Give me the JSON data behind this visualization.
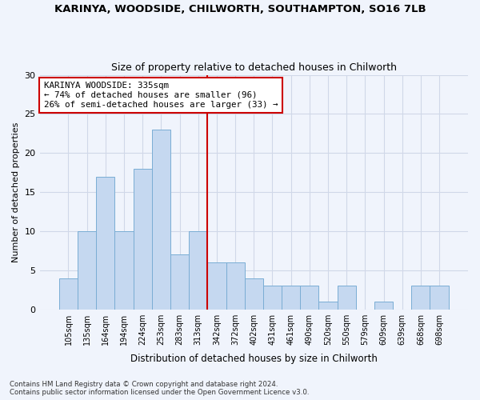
{
  "title": "KARINYA, WOODSIDE, CHILWORTH, SOUTHAMPTON, SO16 7LB",
  "subtitle": "Size of property relative to detached houses in Chilworth",
  "xlabel": "Distribution of detached houses by size in Chilworth",
  "ylabel": "Number of detached properties",
  "categories": [
    "105sqm",
    "135sqm",
    "164sqm",
    "194sqm",
    "224sqm",
    "253sqm",
    "283sqm",
    "313sqm",
    "342sqm",
    "372sqm",
    "402sqm",
    "431sqm",
    "461sqm",
    "490sqm",
    "520sqm",
    "550sqm",
    "579sqm",
    "609sqm",
    "639sqm",
    "668sqm",
    "698sqm"
  ],
  "values": [
    4,
    10,
    17,
    10,
    18,
    23,
    7,
    10,
    6,
    6,
    4,
    3,
    3,
    3,
    1,
    3,
    0,
    1,
    0,
    3,
    3
  ],
  "bar_color": "#c5d8f0",
  "bar_edge_color": "#7aadd4",
  "property_index": 7.5,
  "annotation_title": "KARINYA WOODSIDE: 335sqm",
  "annotation_line1": "← 74% of detached houses are smaller (96)",
  "annotation_line2": "26% of semi-detached houses are larger (33) →",
  "vline_color": "#cc0000",
  "annotation_box_color": "#ffffff",
  "annotation_box_edge": "#cc0000",
  "grid_color": "#d0d8e8",
  "background_color": "#f0f4fc",
  "ylim": [
    0,
    30
  ],
  "footer1": "Contains HM Land Registry data © Crown copyright and database right 2024.",
  "footer2": "Contains public sector information licensed under the Open Government Licence v3.0."
}
